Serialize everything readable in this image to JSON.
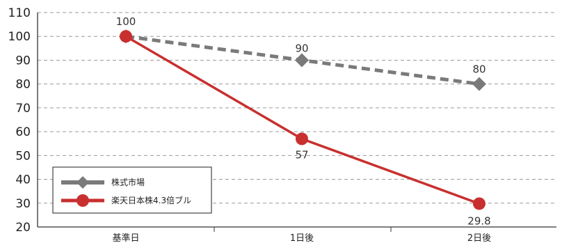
{
  "chart_data": {
    "type": "line",
    "categories": [
      "基準日",
      "1日後",
      "2日後"
    ],
    "yticks": [
      "110",
      "100",
      "90",
      "80",
      "70",
      "60",
      "50",
      "40",
      "30",
      "20"
    ],
    "ylim": [
      20,
      110
    ],
    "grid": true,
    "legend_position": "bottom-left",
    "series": [
      {
        "name": "株式市場",
        "values": [
          100,
          90,
          80
        ],
        "labels": [
          "",
          "90",
          "80"
        ],
        "color": "#7a7a7a",
        "style": "dashed",
        "marker": "diamond"
      },
      {
        "name": "楽天日本株4.3倍ブル",
        "values": [
          100,
          57,
          29.8
        ],
        "labels": [
          "100",
          "57",
          "29.8"
        ],
        "color": "#c8302f",
        "style": "solid",
        "marker": "circle"
      }
    ]
  }
}
